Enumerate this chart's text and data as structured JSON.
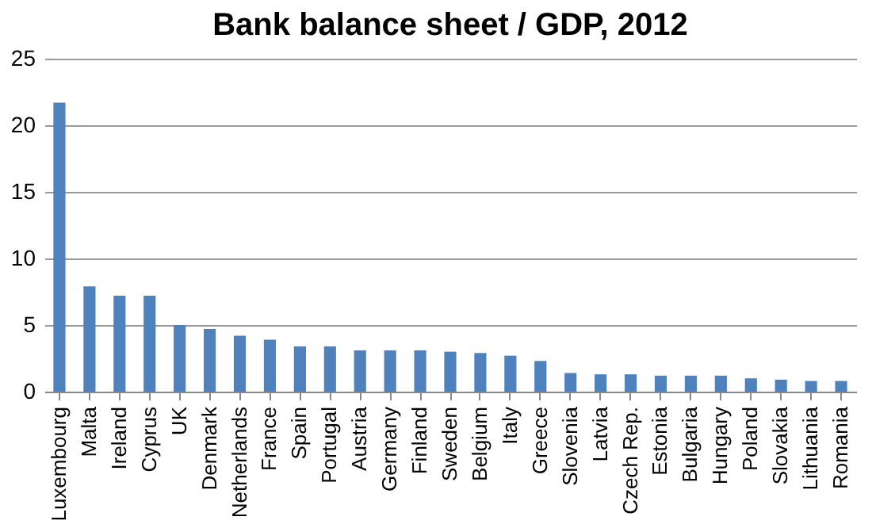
{
  "chart_data": {
    "type": "bar",
    "title": "Bank balance sheet / GDP, 2012",
    "categories": [
      "Luxembourg",
      "Malta",
      "Ireland",
      "Cyprus",
      "UK",
      "Denmark",
      "Netherlands",
      "France",
      "Spain",
      "Portugal",
      "Austria",
      "Germany",
      "Finland",
      "Sweden",
      "Belgium",
      "Italy",
      "Greece",
      "Slovenia",
      "Latvia",
      "Czech Rep.",
      "Estonia",
      "Bulgaria",
      "Hungary",
      "Poland",
      "Slovakia",
      "Lithuania",
      "Romania"
    ],
    "values": [
      21.7,
      7.9,
      7.2,
      7.2,
      5.0,
      4.7,
      4.2,
      3.9,
      3.4,
      3.4,
      3.1,
      3.1,
      3.1,
      3.0,
      2.9,
      2.7,
      2.3,
      1.4,
      1.3,
      1.3,
      1.2,
      1.2,
      1.2,
      1.0,
      0.9,
      0.8,
      0.8
    ],
    "color": "#4f81bd",
    "ylim": [
      0,
      25
    ],
    "yticks": [
      0,
      5,
      10,
      15,
      20,
      25
    ],
    "grid": "y"
  }
}
